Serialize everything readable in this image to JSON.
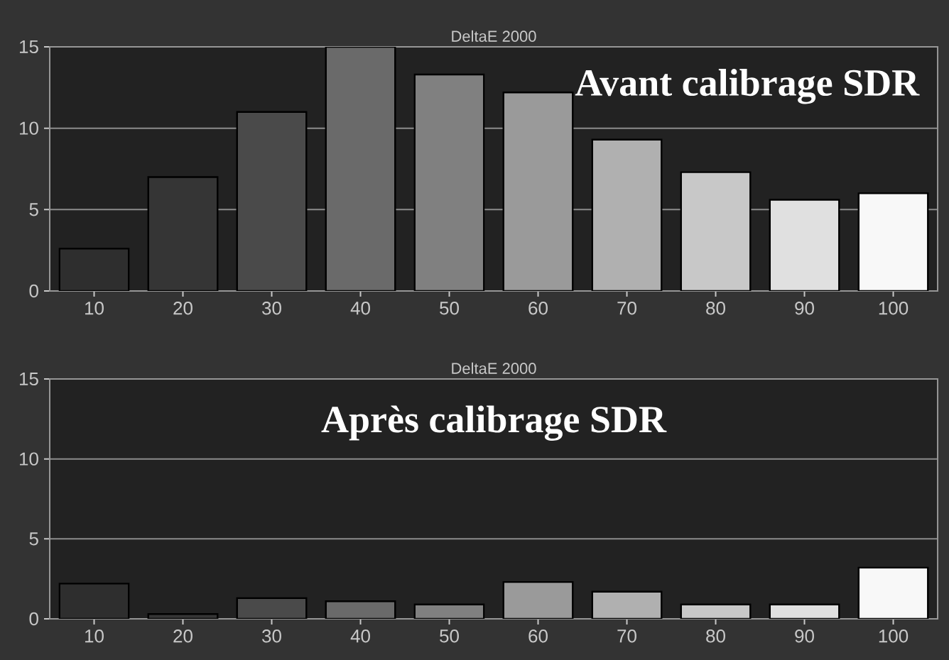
{
  "chart_data": [
    {
      "type": "bar",
      "title": "DeltaE 2000",
      "categories": [
        "10",
        "20",
        "30",
        "40",
        "50",
        "60",
        "70",
        "80",
        "90",
        "100"
      ],
      "values": [
        2.6,
        7.0,
        11.0,
        15.0,
        13.3,
        12.2,
        9.3,
        7.3,
        5.6,
        6.0
      ],
      "colors": [
        "#2e2e2e",
        "#353535",
        "#4a4a4a",
        "#6a6a6a",
        "#808080",
        "#9a9a9a",
        "#b0b0b0",
        "#c8c8c8",
        "#e0e0e0",
        "#f8f8f8"
      ],
      "ylim": [
        0,
        15
      ],
      "yticks": [
        0,
        5,
        10,
        15
      ],
      "grid": "y",
      "annotations": [
        "Avant calibrage SDR"
      ]
    },
    {
      "type": "bar",
      "title": "DeltaE 2000",
      "categories": [
        "10",
        "20",
        "30",
        "40",
        "50",
        "60",
        "70",
        "80",
        "90",
        "100"
      ],
      "values": [
        2.2,
        0.3,
        1.3,
        1.1,
        0.9,
        2.3,
        1.7,
        0.9,
        0.9,
        3.2
      ],
      "colors": [
        "#2e2e2e",
        "#353535",
        "#4a4a4a",
        "#6a6a6a",
        "#808080",
        "#9a9a9a",
        "#b0b0b0",
        "#c8c8c8",
        "#e0e0e0",
        "#f8f8f8"
      ],
      "ylim": [
        0,
        15
      ],
      "yticks": [
        0,
        5,
        10,
        15
      ],
      "grid": "y",
      "annotations": [
        "Après calibrage SDR"
      ]
    }
  ]
}
